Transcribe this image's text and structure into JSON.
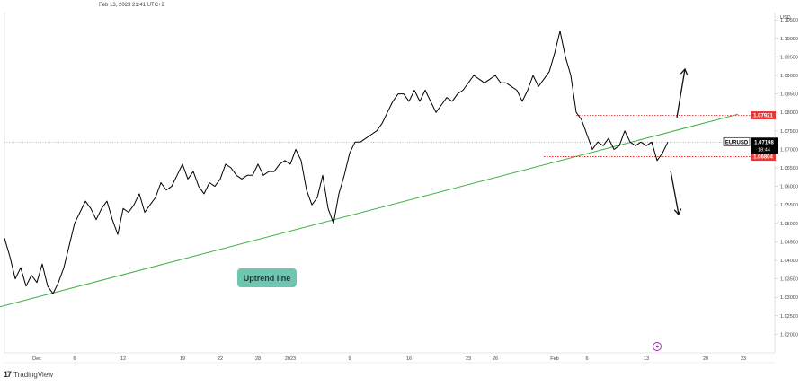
{
  "header": {
    "timestamp": "Feb 13, 2023 21:41 UTC+2"
  },
  "footer": {
    "logo_text": "TradingView",
    "logo_icon": "tradingview-logo-icon"
  },
  "colors": {
    "price_line": "#000000",
    "trendline": "#3cb043",
    "level_line": "#e53935",
    "current_label_bg": "#000000",
    "level_label_bg": "#e53935",
    "annotation_bg": "#6ec6b0",
    "event_icon": "#9c27b0"
  },
  "chart_data": {
    "type": "line",
    "symbol": "EURUSD",
    "currency": "USD",
    "ylim": [
      1.015,
      1.107
    ],
    "y_ticks": [
      "1.10500",
      "1.10000",
      "1.09500",
      "1.09000",
      "1.08500",
      "1.08000",
      "1.07500",
      "1.07000",
      "1.06500",
      "1.06000",
      "1.05500",
      "1.05000",
      "1.04500",
      "1.04000",
      "1.03500",
      "1.03000",
      "1.02500",
      "1.02000"
    ],
    "x_tick_labels": [
      "Dec",
      "6",
      "12",
      "19",
      "22",
      "28",
      "2023",
      "9",
      "16",
      "23",
      "26",
      "Feb",
      "6",
      "13",
      "20",
      "23"
    ],
    "series": [
      {
        "values": [
          [
            0,
            1.046
          ],
          [
            1,
            1.041
          ],
          [
            2,
            1.035
          ],
          [
            3,
            1.038
          ],
          [
            4,
            1.033
          ],
          [
            5,
            1.036
          ],
          [
            6,
            1.034
          ],
          [
            7,
            1.039
          ],
          [
            8,
            1.033
          ],
          [
            9,
            1.031
          ],
          [
            10,
            1.034
          ],
          [
            11,
            1.038
          ],
          [
            12,
            1.044
          ],
          [
            13,
            1.05
          ],
          [
            14,
            1.053
          ],
          [
            15,
            1.056
          ],
          [
            16,
            1.054
          ],
          [
            17,
            1.051
          ],
          [
            18,
            1.054
          ],
          [
            19,
            1.056
          ],
          [
            20,
            1.051
          ],
          [
            21,
            1.047
          ],
          [
            22,
            1.054
          ],
          [
            23,
            1.053
          ],
          [
            24,
            1.055
          ],
          [
            25,
            1.058
          ],
          [
            26,
            1.053
          ],
          [
            27,
            1.055
          ],
          [
            28,
            1.057
          ],
          [
            29,
            1.061
          ],
          [
            30,
            1.059
          ],
          [
            31,
            1.06
          ],
          [
            32,
            1.063
          ],
          [
            33,
            1.066
          ],
          [
            34,
            1.062
          ],
          [
            35,
            1.064
          ],
          [
            36,
            1.06
          ],
          [
            37,
            1.058
          ],
          [
            38,
            1.061
          ],
          [
            39,
            1.06
          ],
          [
            40,
            1.062
          ],
          [
            41,
            1.066
          ],
          [
            42,
            1.065
          ],
          [
            43,
            1.063
          ],
          [
            44,
            1.062
          ],
          [
            45,
            1.063
          ],
          [
            46,
            1.063
          ],
          [
            47,
            1.066
          ],
          [
            48,
            1.063
          ],
          [
            49,
            1.064
          ],
          [
            50,
            1.064
          ],
          [
            51,
            1.066
          ],
          [
            52,
            1.067
          ],
          [
            53,
            1.066
          ],
          [
            54,
            1.07
          ],
          [
            55,
            1.067
          ],
          [
            56,
            1.059
          ],
          [
            57,
            1.055
          ],
          [
            58,
            1.057
          ],
          [
            59,
            1.063
          ],
          [
            60,
            1.054
          ],
          [
            61,
            1.05
          ],
          [
            62,
            1.058
          ],
          [
            63,
            1.063
          ],
          [
            64,
            1.069
          ],
          [
            65,
            1.072
          ],
          [
            66,
            1.072
          ],
          [
            67,
            1.073
          ],
          [
            68,
            1.074
          ],
          [
            69,
            1.075
          ],
          [
            70,
            1.077
          ],
          [
            71,
            1.08
          ],
          [
            72,
            1.083
          ],
          [
            73,
            1.085
          ],
          [
            74,
            1.085
          ],
          [
            75,
            1.083
          ],
          [
            76,
            1.086
          ],
          [
            77,
            1.083
          ],
          [
            78,
            1.086
          ],
          [
            79,
            1.083
          ],
          [
            80,
            1.08
          ],
          [
            81,
            1.082
          ],
          [
            82,
            1.084
          ],
          [
            83,
            1.083
          ],
          [
            84,
            1.085
          ],
          [
            85,
            1.086
          ],
          [
            86,
            1.088
          ],
          [
            87,
            1.09
          ],
          [
            88,
            1.089
          ],
          [
            89,
            1.088
          ],
          [
            90,
            1.089
          ],
          [
            91,
            1.09
          ],
          [
            92,
            1.088
          ],
          [
            93,
            1.088
          ],
          [
            94,
            1.087
          ],
          [
            95,
            1.086
          ],
          [
            96,
            1.083
          ],
          [
            97,
            1.086
          ],
          [
            98,
            1.09
          ],
          [
            99,
            1.087
          ],
          [
            100,
            1.089
          ],
          [
            101,
            1.091
          ],
          [
            102,
            1.096
          ],
          [
            103,
            1.102
          ],
          [
            104,
            1.095
          ],
          [
            105,
            1.09
          ],
          [
            106,
            1.08
          ],
          [
            107,
            1.078
          ],
          [
            108,
            1.074
          ],
          [
            109,
            1.07
          ],
          [
            110,
            1.072
          ],
          [
            111,
            1.071
          ],
          [
            112,
            1.073
          ],
          [
            113,
            1.07
          ],
          [
            114,
            1.071
          ],
          [
            115,
            1.075
          ],
          [
            116,
            1.072
          ],
          [
            117,
            1.071
          ],
          [
            118,
            1.072
          ],
          [
            119,
            1.071
          ],
          [
            120,
            1.072
          ],
          [
            121,
            1.067
          ],
          [
            122,
            1.069
          ],
          [
            123,
            1.072
          ]
        ]
      }
    ],
    "trendline": {
      "label": "Uptrend line",
      "points": [
        [
          -2,
          1.027
        ],
        [
          136,
          1.0795
        ]
      ]
    },
    "levels": [
      {
        "value": "1.07921",
        "x_start": 106
      },
      {
        "value": "1.06804",
        "x_start": 100
      }
    ],
    "current_price": {
      "symbol": "EURUSD",
      "price": "1.07198",
      "countdown": "18:44"
    },
    "arrows": [
      "up",
      "down"
    ]
  }
}
